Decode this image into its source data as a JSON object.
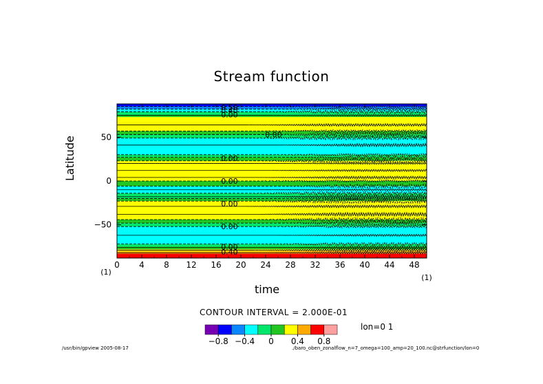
{
  "chart_data": {
    "type": "heatmap",
    "title": "Stream function",
    "xlabel": "time",
    "ylabel": "Latitude",
    "xlim": [
      0,
      50
    ],
    "ylim": [
      -88,
      88
    ],
    "xticks": [
      "0",
      "4",
      "8",
      "12",
      "16",
      "20",
      "24",
      "28",
      "32",
      "36",
      "40",
      "44",
      "48"
    ],
    "yticks": [
      "50",
      "0",
      "−50"
    ],
    "x_left_index": "(1)",
    "x_right_index": "(1)",
    "contour_labels": [
      "0.50",
      "0.40",
      "0.00",
      "0.00",
      "0.00",
      "0.00",
      "0.00",
      "0.00",
      "0.00",
      "0.40"
    ],
    "contour_interval_text": "CONTOUR INTERVAL = 2.000E-01",
    "lon_text": "lon=0 1",
    "colorbar": {
      "colors": [
        "#7800b4",
        "#0000ff",
        "#0a86ff",
        "#00ffff",
        "#00e66a",
        "#22c522",
        "#ffff00",
        "#ffaa00",
        "#ff0000",
        "#ffa0a0"
      ],
      "labels": [
        "−0.8",
        "−0.4",
        "0",
        "0.4",
        "0.8"
      ]
    },
    "bands": [
      {
        "lat_top": 88,
        "lat_bottom": 85,
        "color": "#0000ff"
      },
      {
        "lat_top": 85,
        "lat_bottom": 82,
        "color": "#0a86ff"
      },
      {
        "lat_top": 82,
        "lat_bottom": 79,
        "color": "#00ffff"
      },
      {
        "lat_top": 79,
        "lat_bottom": 75,
        "color": "#00e66a"
      },
      {
        "lat_top": 75,
        "lat_bottom": 73,
        "color": "#22c522"
      },
      {
        "lat_top": 73,
        "lat_bottom": 57,
        "color": "#ffff00"
      },
      {
        "lat_top": 57,
        "lat_bottom": 53,
        "color": "#22c522"
      },
      {
        "lat_top": 53,
        "lat_bottom": 49,
        "color": "#00e66a"
      },
      {
        "lat_top": 49,
        "lat_bottom": 30,
        "color": "#00ffff"
      },
      {
        "lat_top": 30,
        "lat_bottom": 27,
        "color": "#00e66a"
      },
      {
        "lat_top": 27,
        "lat_bottom": 23,
        "color": "#22c522"
      },
      {
        "lat_top": 23,
        "lat_bottom": 0,
        "color": "#ffff00"
      },
      {
        "lat_top": 0,
        "lat_bottom": -6,
        "color": "#22c522"
      },
      {
        "lat_top": -6,
        "lat_bottom": -14,
        "color": "#00ffff"
      },
      {
        "lat_top": -14,
        "lat_bottom": -20,
        "color": "#00e66a"
      },
      {
        "lat_top": -20,
        "lat_bottom": -23,
        "color": "#22c522"
      },
      {
        "lat_top": -23,
        "lat_bottom": -44,
        "color": "#ffff00"
      },
      {
        "lat_top": -44,
        "lat_bottom": -48,
        "color": "#22c522"
      },
      {
        "lat_top": -48,
        "lat_bottom": -52,
        "color": "#00e66a"
      },
      {
        "lat_top": -52,
        "lat_bottom": -72,
        "color": "#00ffff"
      },
      {
        "lat_top": -72,
        "lat_bottom": -75,
        "color": "#00e66a"
      },
      {
        "lat_top": -75,
        "lat_bottom": -78,
        "color": "#22c522"
      },
      {
        "lat_top": -78,
        "lat_bottom": -80,
        "color": "#ffff00"
      },
      {
        "lat_top": -80,
        "lat_bottom": -83,
        "color": "#ffaa00"
      },
      {
        "lat_top": -83,
        "lat_bottom": -88,
        "color": "#ff0000"
      }
    ],
    "solid_contours": [
      75,
      64,
      41,
      20,
      12,
      4,
      -10,
      -18,
      -29,
      -38,
      -62,
      -76,
      -79,
      -82
    ],
    "dashed_contours": [
      85,
      82,
      79,
      57,
      53,
      49,
      30,
      27,
      23,
      0,
      -6,
      -14,
      -20,
      -23,
      -44,
      -48,
      -52,
      -72
    ]
  },
  "footer": {
    "left": "/usr/bin/gpview  2005-08-17",
    "right": "./baro_oben_zonalflow_n=7_omega=100_amp=20_100.nc@strfunction/lon=0"
  }
}
